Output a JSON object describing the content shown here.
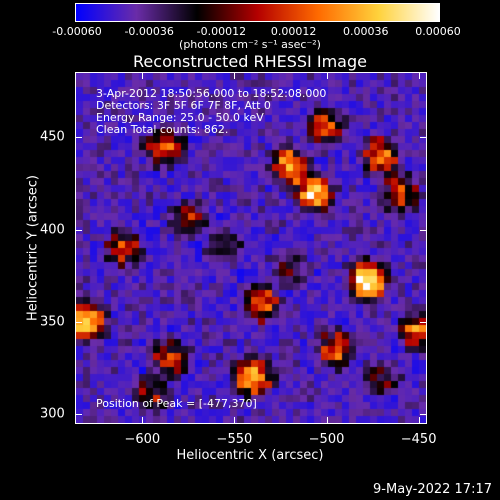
{
  "colorbar": {
    "tick_labels": [
      "-0.00060",
      "-0.00036",
      "-0.00012",
      "0.00012",
      "0.00036",
      "0.00060"
    ],
    "units": "(photons cm⁻² s⁻¹ asec⁻²)",
    "colors": [
      "#0000ff",
      "#6a2ca8",
      "#000000",
      "#b40000",
      "#ff6a00",
      "#ffd23c",
      "#ffffff"
    ]
  },
  "title": "Reconstructed RHESSI Image",
  "info": {
    "line1": "3-Apr-2012 18:50:56.000 to 18:52:08.000",
    "line2": "Detectors: 3F 5F 6F 7F 8F, Att 0",
    "line3": "Energy Range: 25.0 - 50.0 keV",
    "line4": "Clean     Total counts: 862.",
    "peak": "Position of Peak = [-477,370]"
  },
  "chart_data": {
    "type": "heatmap",
    "title": "Reconstructed RHESSI Image",
    "xlabel": "Heliocentric X (arcsec)",
    "ylabel": "Heliocentric Y (arcsec)",
    "xlim": [
      -636,
      -446
    ],
    "ylim": [
      295,
      485
    ],
    "xticks": [
      -600,
      -550,
      -500,
      -450
    ],
    "yticks": [
      300,
      350,
      400,
      450
    ],
    "xtick_labels": [
      "−600",
      "−550",
      "−500",
      "−450"
    ],
    "ytick_labels": [
      "300",
      "350",
      "400",
      "450"
    ],
    "clim": [
      -0.0006,
      0.0006
    ],
    "peak": [
      -477,
      370
    ],
    "bright_sources": [
      {
        "x": -610,
        "y": 390,
        "intensity": 0.0003
      },
      {
        "x": -588,
        "y": 445,
        "intensity": 0.0004
      },
      {
        "x": -575,
        "y": 405,
        "intensity": 0.0003
      },
      {
        "x": -520,
        "y": 435,
        "intensity": 0.00042
      },
      {
        "x": -507,
        "y": 420,
        "intensity": 0.0005
      },
      {
        "x": -500,
        "y": 455,
        "intensity": 0.00035
      },
      {
        "x": -470,
        "y": 440,
        "intensity": 0.0004
      },
      {
        "x": -478,
        "y": 372,
        "intensity": 0.0006
      },
      {
        "x": -460,
        "y": 420,
        "intensity": 0.00035
      },
      {
        "x": -450,
        "y": 345,
        "intensity": 0.0004
      },
      {
        "x": -630,
        "y": 350,
        "intensity": 0.0005
      },
      {
        "x": -535,
        "y": 360,
        "intensity": 0.0004
      },
      {
        "x": -540,
        "y": 320,
        "intensity": 0.0005
      },
      {
        "x": -555,
        "y": 390,
        "intensity": 0.0002
      },
      {
        "x": -495,
        "y": 335,
        "intensity": 0.00035
      },
      {
        "x": -470,
        "y": 320,
        "intensity": 0.0002
      },
      {
        "x": -585,
        "y": 330,
        "intensity": 0.0003
      },
      {
        "x": -595,
        "y": 310,
        "intensity": 0.00025
      },
      {
        "x": -520,
        "y": 380,
        "intensity": 0.0002
      }
    ]
  },
  "datestamp": "9-May-2022 17:17"
}
